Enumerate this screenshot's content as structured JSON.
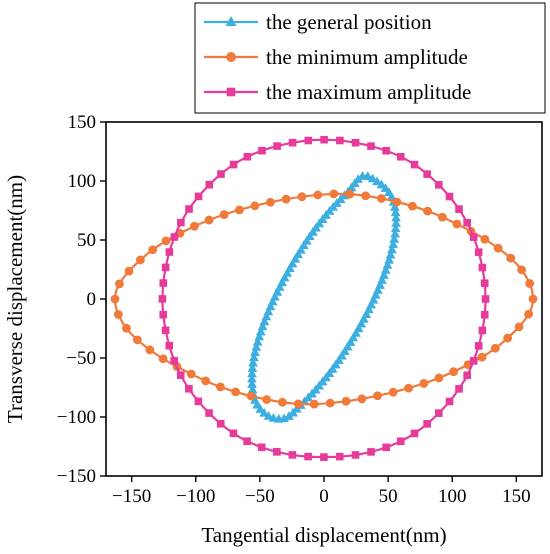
{
  "chart_data": {
    "type": "line",
    "title": "",
    "xlabel": "Tangential displacement(nm)",
    "ylabel": "Transverse displacement(nm)",
    "xlim": [
      -170,
      170
    ],
    "ylim": [
      -150,
      150
    ],
    "xticks": [
      -150,
      -100,
      -50,
      0,
      50,
      100,
      150
    ],
    "yticks": [
      -150,
      -100,
      -50,
      0,
      50,
      100,
      150
    ],
    "grid": false,
    "legend_position": "top-right, above plot",
    "series": [
      {
        "name": "the general position",
        "color": "#3daee0",
        "marker": "triangle",
        "shape": "tilted ellipse",
        "points": [
          [
            30,
            104
          ],
          [
            42,
            99
          ],
          [
            52,
            88
          ],
          [
            56,
            72
          ],
          [
            55,
            52
          ],
          [
            49,
            27
          ],
          [
            39,
            0
          ],
          [
            26,
            -27
          ],
          [
            11,
            -53
          ],
          [
            -4,
            -74
          ],
          [
            -19,
            -91
          ],
          [
            -30,
            -101
          ],
          [
            -42,
            -100
          ],
          [
            -52,
            -90
          ],
          [
            -56,
            -74
          ],
          [
            -55,
            -52
          ],
          [
            -49,
            -27
          ],
          [
            -39,
            0
          ],
          [
            -26,
            27
          ],
          [
            -11,
            53
          ],
          [
            4,
            74
          ],
          [
            19,
            91
          ],
          [
            30,
            104
          ]
        ],
        "marker_count": 110
      },
      {
        "name": "the minimum amplitude",
        "color": "#f07a3a",
        "marker": "circle",
        "shape": "flat ellipse",
        "points": [
          [
            163,
            0
          ],
          [
            160,
            -12
          ],
          [
            150,
            -26
          ],
          [
            132,
            -43
          ],
          [
            110,
            -57
          ],
          [
            82,
            -70
          ],
          [
            50,
            -80
          ],
          [
            15,
            -87
          ],
          [
            -18,
            -89
          ],
          [
            -50,
            -84
          ],
          [
            -82,
            -74
          ],
          [
            -110,
            -60
          ],
          [
            -132,
            -46
          ],
          [
            -150,
            -30
          ],
          [
            -160,
            -14
          ],
          [
            -163,
            0
          ],
          [
            -160,
            12
          ],
          [
            -150,
            26
          ],
          [
            -132,
            43
          ],
          [
            -110,
            57
          ],
          [
            -82,
            70
          ],
          [
            -50,
            80
          ],
          [
            -15,
            87
          ],
          [
            18,
            89
          ],
          [
            50,
            84
          ],
          [
            82,
            74
          ],
          [
            110,
            60
          ],
          [
            132,
            46
          ],
          [
            150,
            30
          ],
          [
            160,
            14
          ],
          [
            163,
            0
          ]
        ],
        "marker_count": 62
      },
      {
        "name": "the maximum amplitude",
        "color": "#e63b9a",
        "marker": "square",
        "shape": "near-circle",
        "points": [
          [
            126,
            0
          ],
          [
            122,
            -34
          ],
          [
            111,
            -66
          ],
          [
            92,
            -94
          ],
          [
            66,
            -117
          ],
          [
            35,
            -130
          ],
          [
            0,
            -134
          ],
          [
            -35,
            -130
          ],
          [
            -66,
            -117
          ],
          [
            -92,
            -94
          ],
          [
            -111,
            -66
          ],
          [
            -122,
            -34
          ],
          [
            -126,
            0
          ],
          [
            -122,
            34
          ],
          [
            -111,
            66
          ],
          [
            -92,
            94
          ],
          [
            -66,
            117
          ],
          [
            -35,
            130
          ],
          [
            0,
            135
          ],
          [
            35,
            130
          ],
          [
            66,
            117
          ],
          [
            92,
            94
          ],
          [
            111,
            66
          ],
          [
            122,
            34
          ],
          [
            126,
            0
          ]
        ],
        "marker_count": 64
      }
    ]
  }
}
